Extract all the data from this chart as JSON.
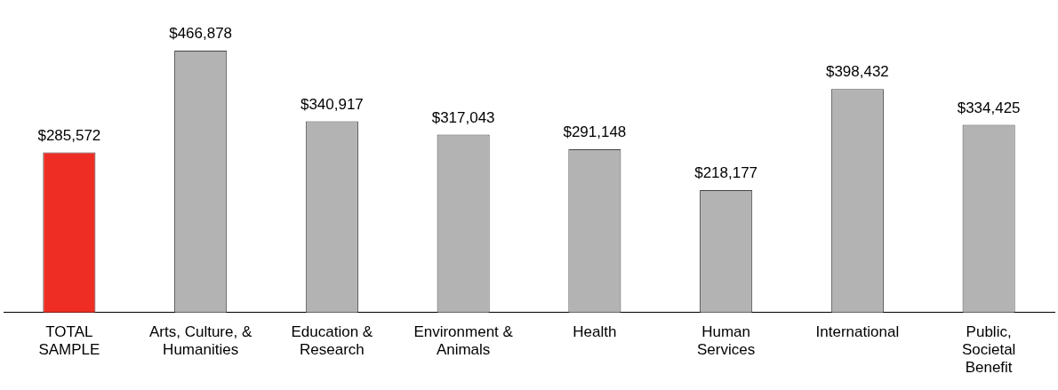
{
  "chart_data": {
    "type": "bar",
    "categories": [
      "TOTAL SAMPLE",
      "Arts, Culture, & Humanities",
      "Education & Research",
      "Environment & Animals",
      "Health",
      "Human Services",
      "International",
      "Public, Societal Benefit"
    ],
    "values": [
      285572,
      466878,
      340917,
      317043,
      291148,
      218177,
      398432,
      334425
    ],
    "colors": [
      "#ee2e24",
      "#b3b3b3",
      "#b3b3b3",
      "#b3b3b3",
      "#b3b3b3",
      "#b3b3b3",
      "#b3b3b3",
      "#b3b3b3"
    ],
    "value_labels": [
      "$285,572",
      "$466,878",
      "$340,917",
      "$317,043",
      "$291,148",
      "$218,177",
      "$398,432",
      "$334,425"
    ],
    "grid": false,
    "legend": false,
    "tick_labels": "x"
  }
}
